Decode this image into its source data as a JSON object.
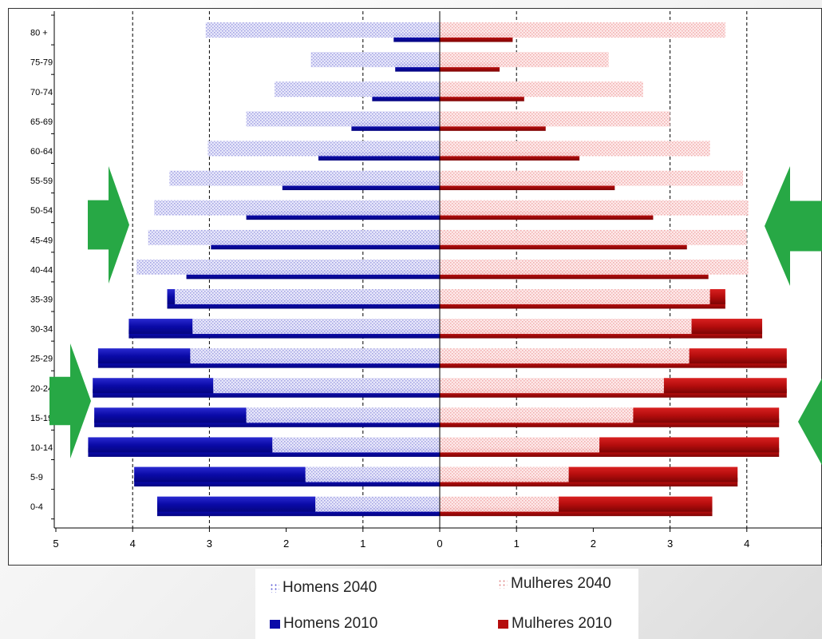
{
  "chart_data": {
    "type": "bar",
    "orientation": "horizontal",
    "subtype": "population-pyramid",
    "categories": [
      "0-4",
      "5-9",
      "10-14",
      "15-19",
      "20-24",
      "25-29",
      "30-34",
      "35-39",
      "40-44",
      "45-49",
      "50-54",
      "55-59",
      "60-64",
      "65-69",
      "70-74",
      "75-79",
      "80 +"
    ],
    "x_ticks": [
      "5",
      "4",
      "3",
      "2",
      "1",
      "0",
      "1",
      "2",
      "3",
      "4",
      "5"
    ],
    "xlim": [
      -5,
      5
    ],
    "grid": "vertical dashed lines at 1, 3 and 4 on both sides",
    "legend_placement": "bottom",
    "series": [
      {
        "name": "Homens 2040",
        "side": "left",
        "style": "light dotted",
        "color": "#c8c8ef",
        "values": [
          1.62,
          1.75,
          2.18,
          2.52,
          2.95,
          3.25,
          3.22,
          3.45,
          3.95,
          3.8,
          3.72,
          3.52,
          3.02,
          2.52,
          2.15,
          1.68,
          3.05
        ]
      },
      {
        "name": "Homens 2010",
        "side": "left",
        "style": "solid",
        "color": "#0a0aa8",
        "values": [
          3.68,
          3.98,
          4.58,
          4.5,
          4.52,
          4.45,
          4.05,
          3.55,
          3.3,
          2.98,
          2.52,
          2.05,
          1.58,
          1.15,
          0.88,
          0.58,
          0.6
        ]
      },
      {
        "name": "Mulheres 2040",
        "side": "right",
        "style": "light dotted",
        "color": "#f6cccc",
        "values": [
          1.55,
          1.68,
          2.08,
          2.52,
          2.92,
          3.25,
          3.28,
          3.52,
          4.02,
          4.0,
          4.02,
          3.95,
          3.52,
          3.0,
          2.65,
          2.2,
          3.72
        ]
      },
      {
        "name": "Mulheres 2010",
        "side": "right",
        "style": "solid",
        "color": "#b50d0d",
        "values": [
          3.55,
          3.88,
          4.42,
          4.42,
          4.52,
          4.52,
          4.2,
          3.72,
          3.5,
          3.22,
          2.78,
          2.28,
          1.82,
          1.38,
          1.1,
          0.78,
          0.95
        ]
      }
    ],
    "annotations": {
      "arrow_color": "#27a845"
    }
  }
}
